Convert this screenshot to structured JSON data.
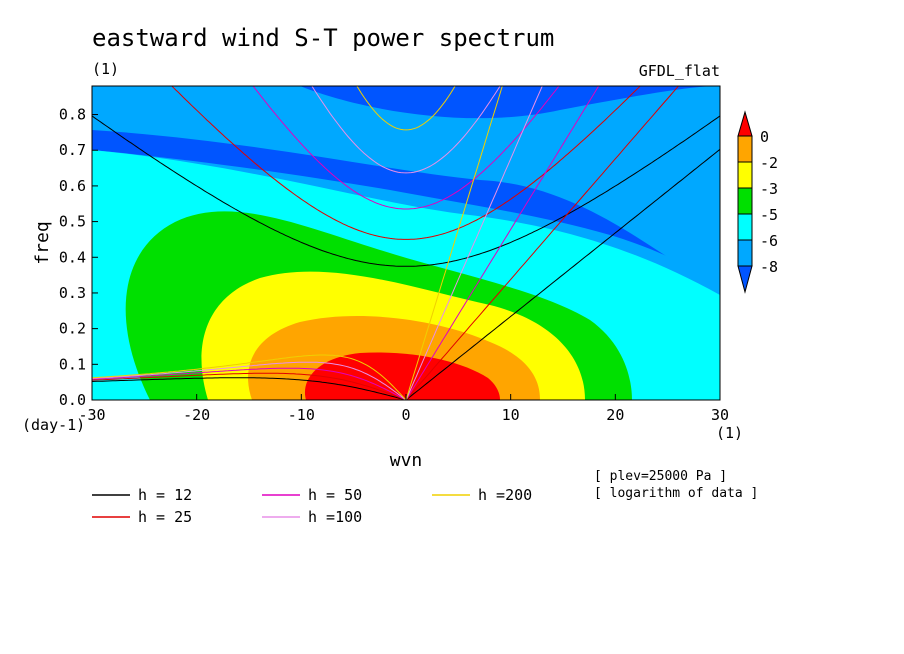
{
  "figure": {
    "title": "eastward wind S-T power spectrum",
    "units_label": "(1)",
    "model_label": "GFDL_flat",
    "note_plev": "[ plev=25000 Pa ]",
    "note_log": "[ logarithm of data ]"
  },
  "chart_data": {
    "type": "heatmap",
    "title": "eastward wind S-T power spectrum",
    "xlabel": "wvn",
    "ylabel": "freq",
    "x_unit_label": "(1)",
    "y_unit_label": "(day-1)",
    "xlim": [
      -30,
      30
    ],
    "ylim": [
      0,
      0.88
    ],
    "x_ticks": [
      -30,
      -20,
      -10,
      0,
      10,
      20,
      30
    ],
    "y_ticks": [
      0.0,
      0.1,
      0.2,
      0.3,
      0.4,
      0.5,
      0.6,
      0.7,
      0.8
    ],
    "x_tick_labels": [
      "-30",
      "-20",
      "-10",
      "0",
      "10",
      "20",
      "30"
    ],
    "y_tick_labels": [
      "0.0",
      "0.1",
      "0.2",
      "0.3",
      "0.4",
      "0.5",
      "0.6",
      "0.7",
      "0.8"
    ],
    "colorbar": {
      "levels": [
        0,
        -2,
        -3,
        -5,
        -6,
        -8
      ],
      "labels": [
        "0",
        "-2",
        "-3",
        "-5",
        "-6",
        "-8"
      ],
      "colors": [
        "#ff0000",
        "#ffa500",
        "#ffff00",
        "#00e000",
        "#00ffff",
        "#00a8ff",
        "#0055ff"
      ]
    },
    "filled_contours": [
      {
        "level": "< -8",
        "color": "#0055ff"
      },
      {
        "level": "-8 to -6",
        "color": "#00a8ff"
      },
      {
        "level": "-6 to -5",
        "color": "#00ffff"
      },
      {
        "level": "-5 to -3",
        "color": "#00e000"
      },
      {
        "level": "-3 to -2",
        "color": "#ffff00"
      },
      {
        "level": "-2 to 0",
        "color": "#ffa500"
      },
      {
        "level": "> 0",
        "color": "#ff0000"
      }
    ],
    "dispersion_curves": [
      {
        "label": "h = 12",
        "h": 12,
        "color": "#000000"
      },
      {
        "label": "h = 25",
        "h": 25,
        "color": "#e00000"
      },
      {
        "label": "h = 50",
        "h": 50,
        "color": "#e000c0"
      },
      {
        "label": "h =100",
        "h": 100,
        "color": "#e890e8"
      },
      {
        "label": "h =200",
        "h": 200,
        "color": "#f0d000"
      }
    ],
    "legend_position": "below"
  }
}
